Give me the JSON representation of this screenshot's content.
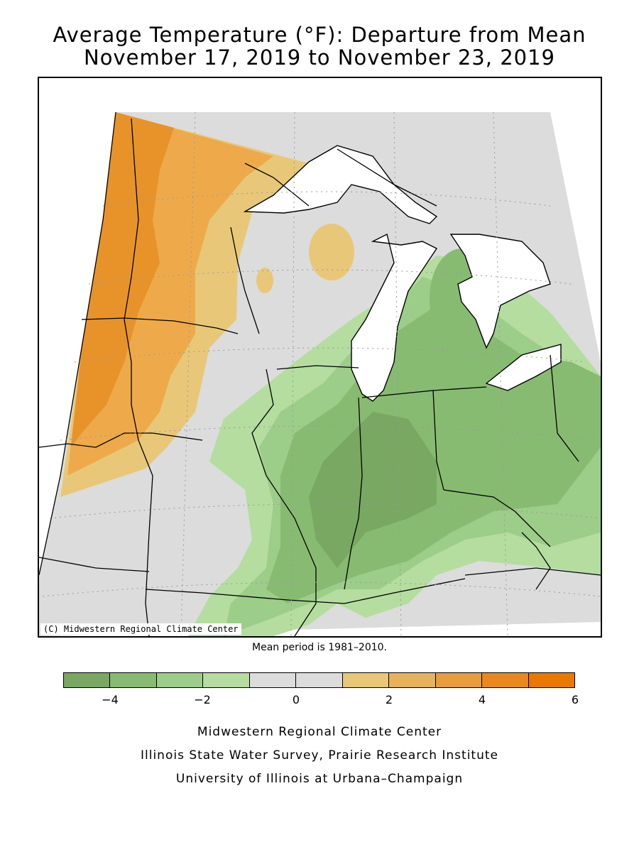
{
  "title": {
    "line1": "Average Temperature (°F): Departure from Mean",
    "line2": "November 17, 2019 to November 23, 2019"
  },
  "map": {
    "copyright": "(C) Midwestern Regional Climate Center",
    "region_colors": {
      "warm_strong": "#e8932a",
      "warm": "#eeaa4a",
      "warm_light": "#e8c878",
      "neutral": "#dcdcdc",
      "cool_light": "#b4dd9f",
      "cool": "#9ccd89",
      "cool_mid": "#88bb72",
      "cool_strong": "#78a862"
    }
  },
  "mean_period": "Mean period is 1981–2010.",
  "legend": {
    "colors": [
      "#78a862",
      "#88bb72",
      "#9ccd89",
      "#b4dd9f",
      "#dcdcdc",
      "#dcdcdc",
      "#e8c878",
      "#e6b35c",
      "#e89c3c",
      "#e98820",
      "#e87a00"
    ],
    "ticks": [
      "−4",
      "−2",
      "0",
      "2",
      "4",
      "6"
    ]
  },
  "credits": {
    "line1": "Midwestern Regional Climate Center",
    "line2": "Illinois State Water Survey, Prairie Research Institute",
    "line3": "University of Illinois at Urbana–Champaign"
  }
}
